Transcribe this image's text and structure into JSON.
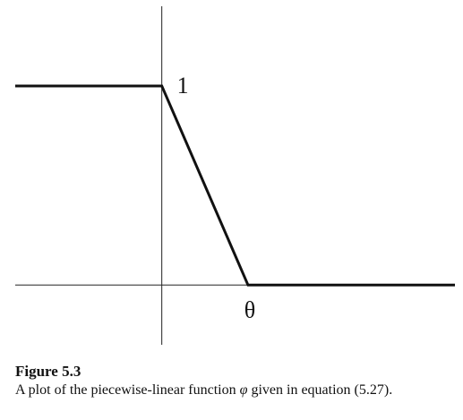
{
  "chart_data": {
    "type": "line",
    "title": "",
    "xlabel": "",
    "ylabel": "",
    "x_tick_labels": [
      "θ"
    ],
    "y_tick_labels": [
      "1"
    ],
    "xlim": [
      -1.7,
      3.4
    ],
    "ylim": [
      -0.3,
      1.4
    ],
    "axes": {
      "x_axis_at": 0,
      "y_axis_at": 0
    },
    "grid": false,
    "legend": "none",
    "series": [
      {
        "x": [
          -1.7,
          0,
          1,
          3.4
        ],
        "y": [
          1,
          1,
          0,
          0
        ]
      }
    ],
    "colors": {
      "line": "#111111",
      "axis": "#222222"
    }
  },
  "caption": {
    "label": "Figure 5.3",
    "text_before": "A plot of the piecewise-linear function ",
    "symbol": "φ",
    "text_after": " given in equation (5.27)."
  }
}
